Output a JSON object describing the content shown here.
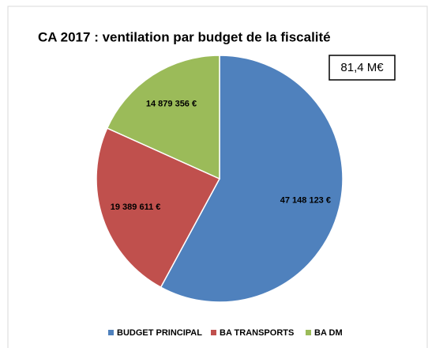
{
  "chart_data": {
    "type": "pie",
    "title": "CA 2017 : ventilation par budget de la fiscalité",
    "annotation": "81,4 M€",
    "categories": [
      "BUDGET PRINCIPAL",
      "BA TRANSPORTS",
      "BA DM"
    ],
    "values": [
      47148123,
      19389611,
      14879356
    ],
    "value_labels": [
      "47 148 123 €",
      "19 389 611 €",
      "14 879 356 €"
    ],
    "colors": [
      "#4f81bd",
      "#c0504d",
      "#9bbb59"
    ],
    "legend": "bottom"
  }
}
